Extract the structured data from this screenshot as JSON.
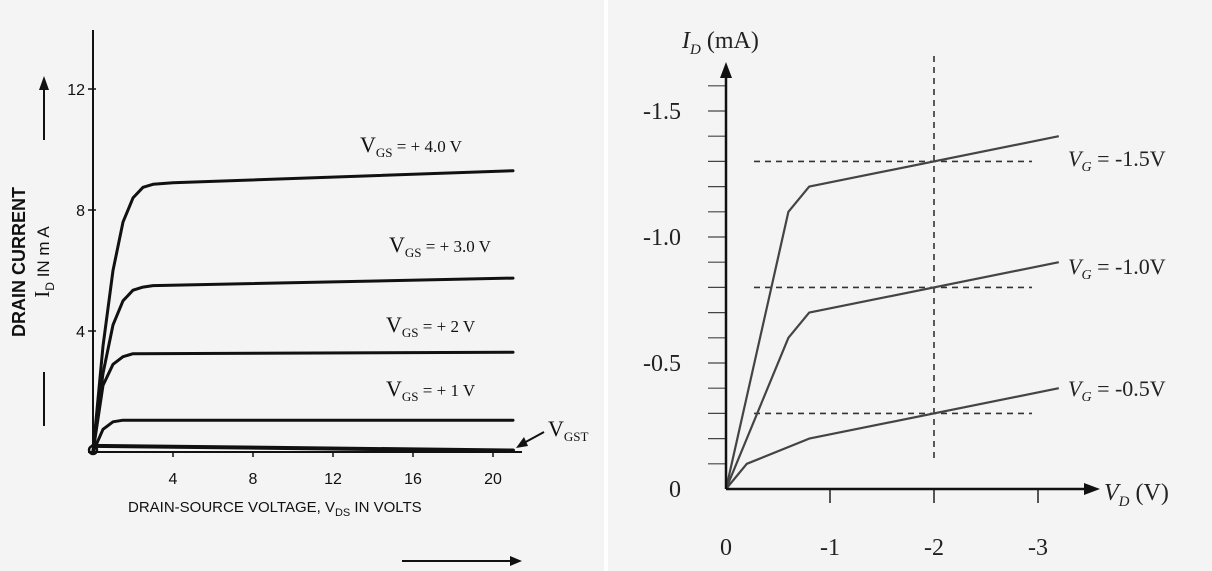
{
  "chart_data": [
    {
      "type": "line",
      "title": "",
      "xlabel": "DRAIN-SOURCE VOLTAGE, V",
      "xlabel_sub": "DS",
      "xlabel_suffix": " IN VOLTS",
      "ylabel_line1": "DRAIN CURRENT",
      "ylabel_line2_main": "I",
      "ylabel_line2_sub": "D",
      "ylabel_line2_suffix": " IN m A",
      "xlim": [
        0,
        21.5
      ],
      "ylim": [
        0,
        14
      ],
      "xticks": [
        "4",
        "8",
        "12",
        "16",
        "20"
      ],
      "yticks": [
        "4",
        "8",
        "12"
      ],
      "grid": false,
      "series": [
        {
          "label_main": "V",
          "label_sub": "GS",
          "label_suffix": " = + 4.0 V",
          "x": [
            0,
            0.5,
            1,
            1.5,
            2,
            2.5,
            3,
            4,
            21
          ],
          "y": [
            0,
            3.5,
            6.0,
            7.6,
            8.4,
            8.75,
            8.85,
            8.9,
            9.3
          ]
        },
        {
          "label_main": "V",
          "label_sub": "GS",
          "label_suffix": " = + 3.0 V",
          "x": [
            0,
            0.5,
            1,
            1.5,
            2,
            2.5,
            3,
            21
          ],
          "y": [
            0,
            2.6,
            4.2,
            5.0,
            5.35,
            5.45,
            5.5,
            5.75
          ]
        },
        {
          "label_main": "V",
          "label_sub": "GS",
          "label_suffix": " = + 2 V",
          "x": [
            0,
            0.5,
            1,
            1.5,
            2,
            21
          ],
          "y": [
            0,
            2.2,
            2.9,
            3.15,
            3.25,
            3.3
          ]
        },
        {
          "label_main": "V",
          "label_sub": "GS",
          "label_suffix": " = + 1 V",
          "x": [
            0,
            0.5,
            1,
            1.5,
            21
          ],
          "y": [
            0,
            0.75,
            1.0,
            1.05,
            1.05
          ]
        },
        {
          "label_main": "V",
          "label_sub": "GST",
          "label_suffix": "",
          "x": [
            0,
            21
          ],
          "y": [
            0.2,
            0.05
          ]
        }
      ]
    },
    {
      "type": "line",
      "title": "",
      "xlabel_main": "V",
      "xlabel_sub": "D",
      "xlabel_suffix": " (V)",
      "ylabel_main": "I",
      "ylabel_sub": "D",
      "ylabel_suffix": " (mA)",
      "xlim": [
        0,
        -3.3
      ],
      "ylim": [
        0,
        -1.85
      ],
      "xticks": [
        "0",
        "-1",
        "-2",
        "-3"
      ],
      "yticks": [
        "0",
        "-0.5",
        "-1.0",
        "-1.5"
      ],
      "grid": false,
      "reference_lines": {
        "x": -2,
        "y": [
          -1.3,
          -0.8,
          -0.3
        ]
      },
      "series": [
        {
          "label_main": "V",
          "label_sub": "G",
          "label_suffix": " = -1.5V",
          "x": [
            0,
            -0.6,
            -0.8,
            -3.2
          ],
          "y": [
            0,
            -1.1,
            -1.2,
            -1.4
          ]
        },
        {
          "label_main": "V",
          "label_sub": "G",
          "label_suffix": " = -1.0V",
          "x": [
            0,
            -0.6,
            -0.8,
            -3.2
          ],
          "y": [
            0,
            -0.6,
            -0.7,
            -0.9
          ]
        },
        {
          "label_main": "V",
          "label_sub": "G",
          "label_suffix": " = -0.5V",
          "x": [
            0,
            -0.2,
            -0.8,
            -3.2
          ],
          "y": [
            0,
            -0.1,
            -0.2,
            -0.4
          ]
        }
      ]
    }
  ]
}
